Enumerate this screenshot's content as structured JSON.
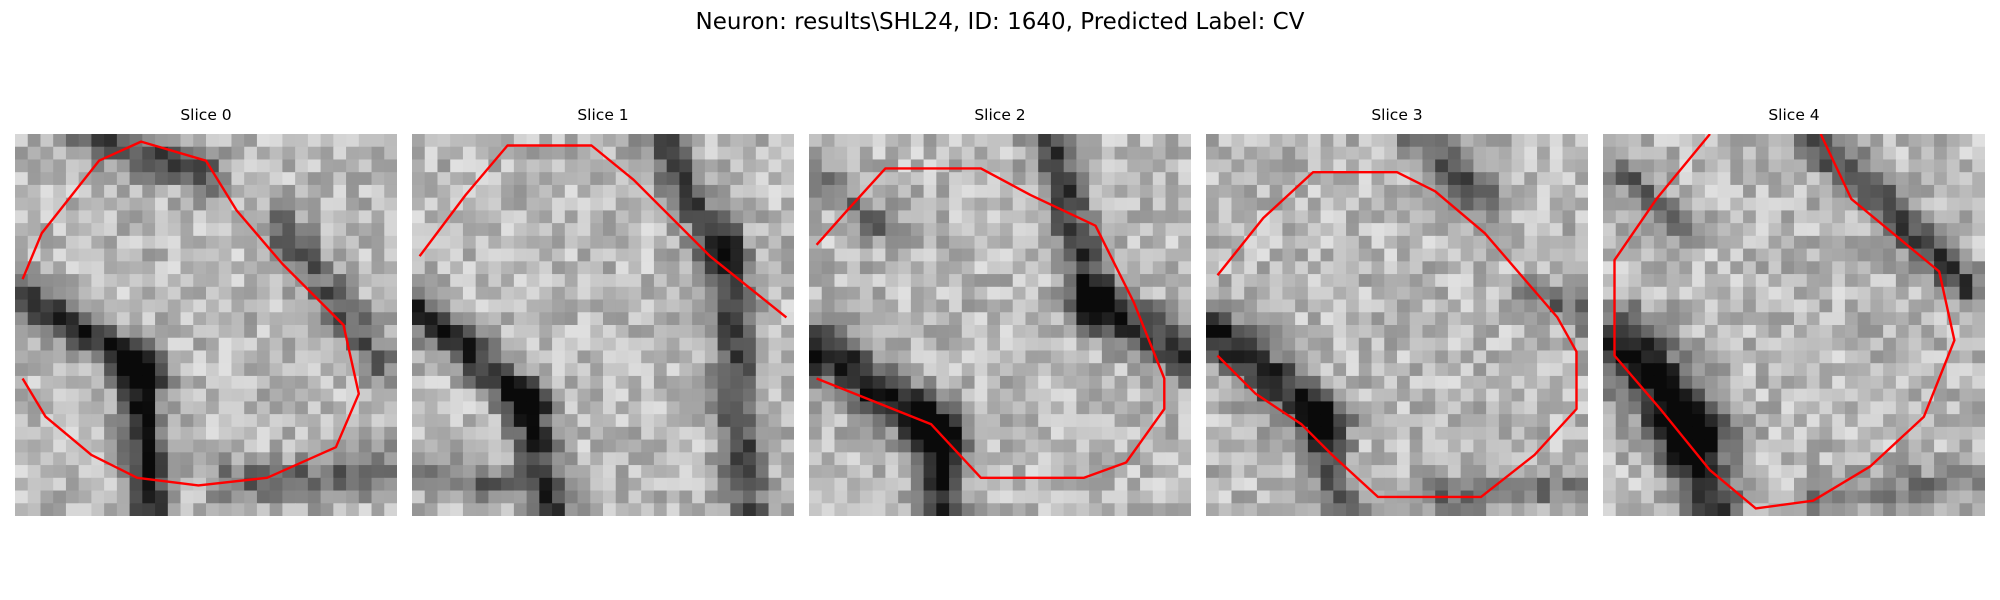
{
  "figure": {
    "title": "Neuron: results\\SHL24, ID: 1640, Predicted Label: CV",
    "contour_color": "#ff0000"
  },
  "slices": [
    {
      "label": "Slice 0"
    },
    {
      "label": "Slice 1"
    },
    {
      "label": "Slice 2"
    },
    {
      "label": "Slice 3"
    },
    {
      "label": "Slice 4"
    }
  ]
}
